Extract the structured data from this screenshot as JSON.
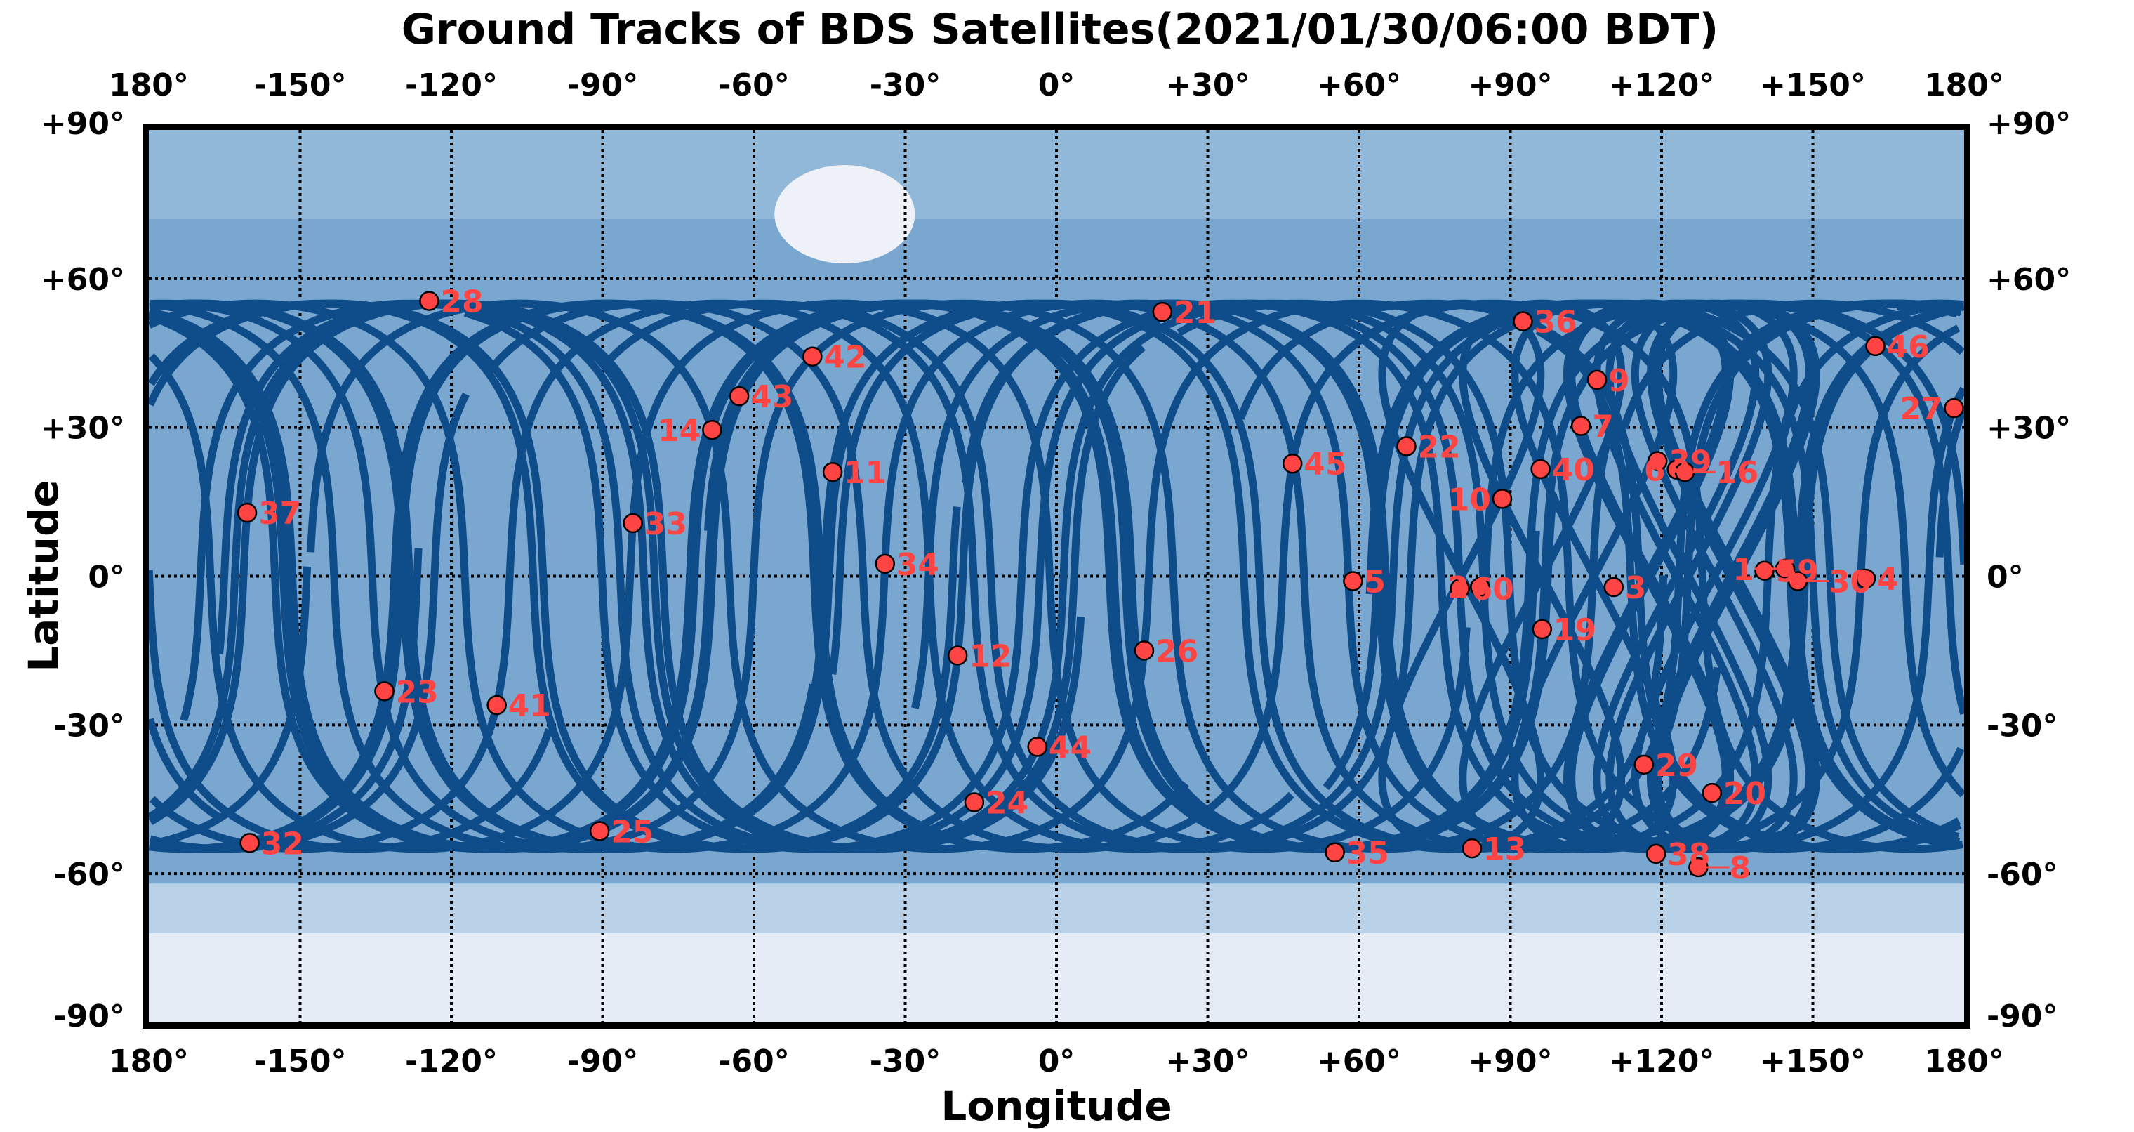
{
  "chart_data": {
    "type": "scatter",
    "title": "Ground Tracks of BDS Satellites(2021/01/30/06:00 BDT)",
    "xlabel": "Longitude",
    "ylabel": "Latitude",
    "xlim": [
      -180,
      180
    ],
    "ylim": [
      -90,
      90
    ],
    "grid": true,
    "x_ticks": [
      -180,
      -150,
      -120,
      -90,
      -60,
      -30,
      0,
      30,
      60,
      90,
      120,
      150,
      180
    ],
    "x_tick_labels": [
      "180°",
      "-150°",
      "-120°",
      "-90°",
      "-60°",
      "-30°",
      "0°",
      "+30°",
      "+60°",
      "+90°",
      "+120°",
      "+150°",
      "180°"
    ],
    "y_ticks": [
      90,
      60,
      30,
      0,
      -30,
      -60,
      -90
    ],
    "y_tick_labels": [
      "+90°",
      "+60°",
      "+30°",
      "0°",
      "-30°",
      "-60°",
      "-90°"
    ],
    "colors": {
      "track": "#0f4c8a",
      "marker": "#ff4444",
      "label": "#ff4444",
      "ocean": "#7aa7cf"
    },
    "track_inclination_deg": 55,
    "satellites": [
      {
        "prn": "28",
        "lon": -124.4,
        "lat": 55.5,
        "type": "MEO"
      },
      {
        "prn": "21",
        "lon": 21.0,
        "lat": 53.3,
        "type": "MEO"
      },
      {
        "prn": "36",
        "lon": 92.5,
        "lat": 51.4,
        "type": "MEO"
      },
      {
        "prn": "46",
        "lon": 162.4,
        "lat": 46.4,
        "type": "MEO"
      },
      {
        "prn": "42",
        "lon": -48.4,
        "lat": 44.3,
        "type": "MEO"
      },
      {
        "prn": "9",
        "lon": 107.2,
        "lat": 39.6,
        "type": "IGSO"
      },
      {
        "prn": "43",
        "lon": -62.9,
        "lat": 36.3,
        "type": "MEO"
      },
      {
        "prn": "27",
        "lon": 178.0,
        "lat": 33.9,
        "type": "MEO"
      },
      {
        "prn": "7",
        "lon": 104.0,
        "lat": 30.3,
        "type": "IGSO"
      },
      {
        "prn": "14",
        "lon": -68.3,
        "lat": 29.5,
        "type": "MEO"
      },
      {
        "prn": "22",
        "lon": 69.4,
        "lat": 26.2,
        "type": "MEO"
      },
      {
        "prn": "45",
        "lon": 46.8,
        "lat": 22.7,
        "type": "MEO"
      },
      {
        "prn": "39",
        "lon": 119.2,
        "lat": 23.2,
        "type": "IGSO"
      },
      {
        "prn": "6",
        "lon": 123.0,
        "lat": 21.5,
        "type": "IGSO"
      },
      {
        "prn": "16",
        "lon": 124.6,
        "lat": 21.0,
        "type": "IGSO"
      },
      {
        "prn": "40",
        "lon": 96.0,
        "lat": 21.6,
        "type": "IGSO"
      },
      {
        "prn": "11",
        "lon": -44.4,
        "lat": 21.0,
        "type": "MEO"
      },
      {
        "prn": "10",
        "lon": 88.4,
        "lat": 15.6,
        "type": "IGSO"
      },
      {
        "prn": "37",
        "lon": -160.5,
        "lat": 12.8,
        "type": "MEO"
      },
      {
        "prn": "33",
        "lon": -84.0,
        "lat": 10.7,
        "type": "MEO"
      },
      {
        "prn": "34",
        "lon": -34.0,
        "lat": 2.5,
        "type": "MEO"
      },
      {
        "prn": "59",
        "lon": 140.4,
        "lat": 1.1,
        "type": "GEO"
      },
      {
        "prn": "1",
        "lon": 144.5,
        "lat": 1.5,
        "type": "GEO"
      },
      {
        "prn": "30",
        "lon": 147.0,
        "lat": -1.0,
        "type": "MEO"
      },
      {
        "prn": "4",
        "lon": 160.5,
        "lat": -0.5,
        "type": "GEO"
      },
      {
        "prn": "5",
        "lon": 58.8,
        "lat": -1.0,
        "type": "GEO"
      },
      {
        "prn": "60",
        "lon": 80.0,
        "lat": -2.5,
        "type": "GEO"
      },
      {
        "prn": "2",
        "lon": 84.0,
        "lat": -2.2,
        "type": "GEO"
      },
      {
        "prn": "3",
        "lon": 110.5,
        "lat": -2.2,
        "type": "GEO"
      },
      {
        "prn": "19",
        "lon": 96.3,
        "lat": -10.7,
        "type": "MEO"
      },
      {
        "prn": "12",
        "lon": -19.6,
        "lat": -16.0,
        "type": "MEO"
      },
      {
        "prn": "26",
        "lon": 17.4,
        "lat": -15.0,
        "type": "MEO"
      },
      {
        "prn": "23",
        "lon": -133.3,
        "lat": -23.2,
        "type": "MEO"
      },
      {
        "prn": "41",
        "lon": -111.0,
        "lat": -26.0,
        "type": "MEO"
      },
      {
        "prn": "44",
        "lon": -3.8,
        "lat": -34.4,
        "type": "MEO"
      },
      {
        "prn": "29",
        "lon": 116.5,
        "lat": -38.0,
        "type": "MEO"
      },
      {
        "prn": "20",
        "lon": 130.0,
        "lat": -43.7,
        "type": "MEO"
      },
      {
        "prn": "24",
        "lon": -16.3,
        "lat": -45.6,
        "type": "MEO"
      },
      {
        "prn": "25",
        "lon": -90.6,
        "lat": -51.4,
        "type": "MEO"
      },
      {
        "prn": "32",
        "lon": -160.0,
        "lat": -53.8,
        "type": "MEO"
      },
      {
        "prn": "35",
        "lon": 55.2,
        "lat": -55.7,
        "type": "MEO"
      },
      {
        "prn": "13",
        "lon": 82.4,
        "lat": -54.9,
        "type": "IGSO"
      },
      {
        "prn": "38",
        "lon": 118.9,
        "lat": -56.0,
        "type": "IGSO"
      },
      {
        "prn": "8",
        "lon": 127.3,
        "lat": -58.7,
        "type": "IGSO"
      }
    ]
  }
}
